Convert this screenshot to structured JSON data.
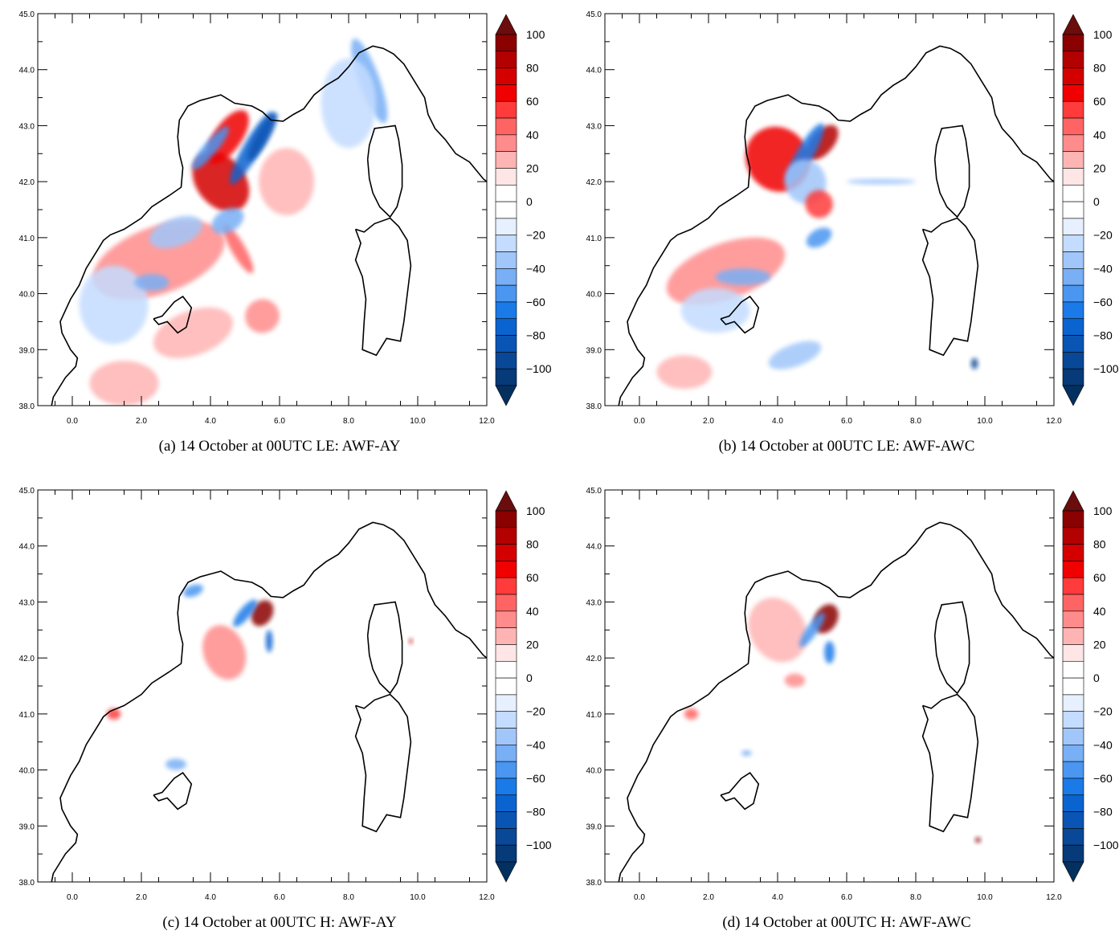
{
  "axes": {
    "x_ticks": [
      "0.0",
      "2.0",
      "4.0",
      "6.0",
      "8.0",
      "10.0",
      "12.0"
    ],
    "y_ticks": [
      "45.0",
      "44.0",
      "43.0",
      "42.0",
      "41.0",
      "40.0",
      "39.0",
      "38.0"
    ],
    "xlim": [
      -1.0,
      12.0
    ],
    "ylim": [
      38.0,
      45.0
    ]
  },
  "colorbar": {
    "labels": [
      "100",
      "80",
      "60",
      "40",
      "20",
      "0",
      "−20",
      "−40",
      "−60",
      "−80",
      "−100"
    ],
    "colors": [
      "#6b0d0d",
      "#8b0000",
      "#b30000",
      "#d40000",
      "#f00000",
      "#ff3b3b",
      "#ff6464",
      "#ff8c8c",
      "#ffb4b4",
      "#ffe6e6",
      "#ffffff",
      "#ffffff",
      "#e6f0ff",
      "#c4dcff",
      "#a0c6fa",
      "#78aff5",
      "#4a96f0",
      "#1a7ae8",
      "#0a64d0",
      "#0a55b4",
      "#084896",
      "#063a78",
      "#04305f"
    ],
    "extend": "both"
  },
  "panels": [
    {
      "caption": "(a) 14 October at 00UTC LE: AWF-AY",
      "intensity": "strong"
    },
    {
      "caption": "(b) 14 October at 00UTC LE: AWF-AWC",
      "intensity": "strong"
    },
    {
      "caption": "(c) 14 October at 00UTC H: AWF-AY",
      "intensity": "weak"
    },
    {
      "caption": "(d) 14 October at 00UTC H: AWF-AWC",
      "intensity": "weak"
    }
  ]
}
